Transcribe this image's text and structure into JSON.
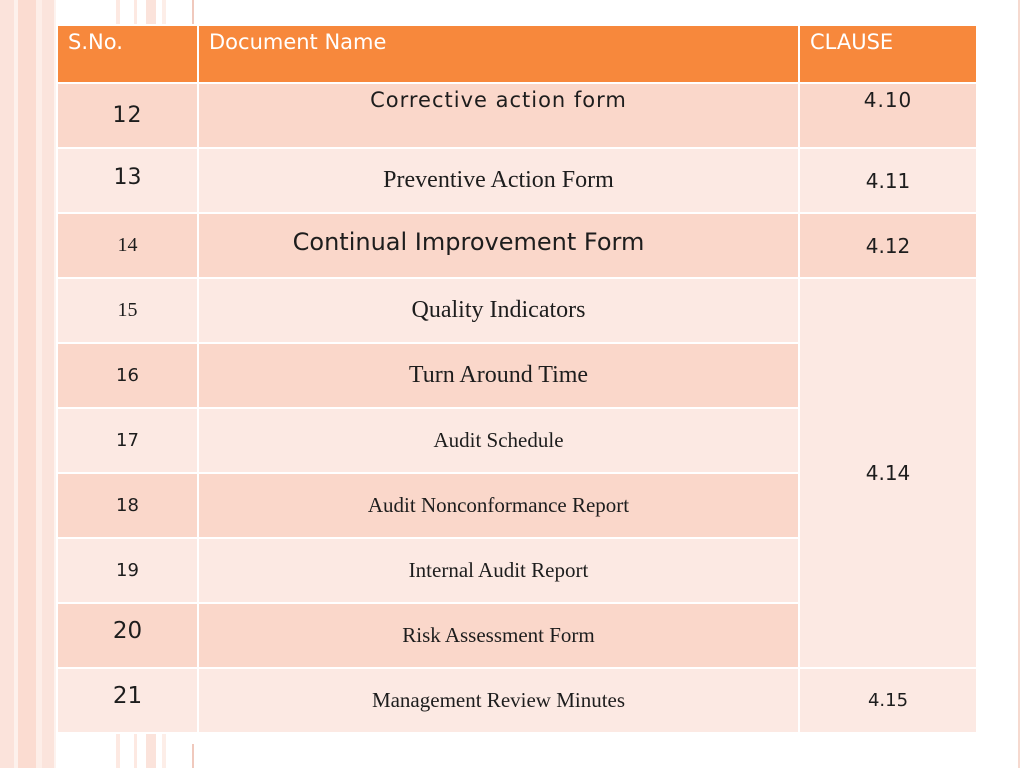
{
  "table": {
    "headers": {
      "sno": "S.No.",
      "document_name": "Document Name",
      "clause": "CLAUSE"
    },
    "rows": [
      {
        "sno": "12",
        "document": "Corrective action form",
        "clause": "4.10"
      },
      {
        "sno": "13",
        "document": "Preventive Action Form",
        "clause": "4.11"
      },
      {
        "sno": "14",
        "document": "Continual Improvement Form",
        "clause": "4.12"
      },
      {
        "sno": "15",
        "document": "Quality Indicators",
        "clause": "4.14"
      },
      {
        "sno": "16",
        "document": "Turn Around Time",
        "clause": "4.14"
      },
      {
        "sno": "17",
        "document": "Audit Schedule",
        "clause": "4.14"
      },
      {
        "sno": "18",
        "document": "Audit Nonconformance Report",
        "clause": "4.14"
      },
      {
        "sno": "19",
        "document": "Internal Audit Report",
        "clause": "4.14"
      },
      {
        "sno": "20",
        "document": "Risk Assessment Form",
        "clause": "4.14"
      },
      {
        "sno": "21",
        "document": "Management Review Minutes",
        "clause": "4.15"
      }
    ]
  },
  "colors": {
    "header_bg": "#f7883c",
    "row_dark": "#fad7ca",
    "row_light": "#fce9e3"
  }
}
